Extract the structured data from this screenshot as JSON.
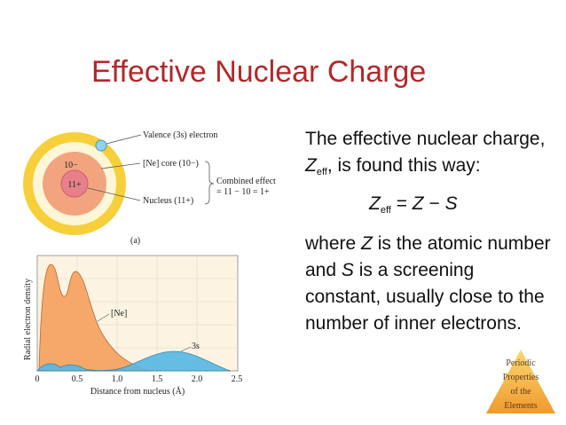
{
  "slide": {
    "title": "Effective Nuclear Charge",
    "paragraph1_a": "The effective nuclear charge, ",
    "paragraph1_z": "Z",
    "paragraph1_sub": "eff",
    "paragraph1_b": ", is found this way:",
    "equation_z": "Z",
    "equation_sub": "eff",
    "equation_rest": " = ",
    "equation_z2": "Z",
    "equation_minus": " − ",
    "equation_s": "S",
    "paragraph2_a": "where ",
    "paragraph2_z": "Z",
    "paragraph2_b": " is the atomic number and ",
    "paragraph2_s": "S",
    "paragraph2_c": " is a screening constant, usually close to the number of inner electrons."
  },
  "figure_a": {
    "core_label": "10−",
    "nucleus_label": "11+",
    "label_valence": "Valence (3s) electron",
    "label_core": "[Ne] core (10−)",
    "label_nucleus": "Nucleus (11+)",
    "label_combined_1": "Combined effect",
    "label_combined_2": "= 11 − 10 = 1+",
    "caption": "(a)"
  },
  "figure_b": {
    "ylabel": "Radial electron density",
    "xlabel": "Distance from nucleus (Å)",
    "ne_label": "[Ne]",
    "s_label": "3s",
    "xticks": [
      "0",
      "0.5",
      "1.0",
      "1.5",
      "2.0",
      "2.5"
    ]
  },
  "badge": {
    "line1": "Periodic",
    "line2": "Properties",
    "line3": "of the",
    "line4": "Elements"
  },
  "colors": {
    "title": "#b3272b",
    "outer_shell": "#f7cf3a",
    "core": "#f2a47e",
    "nucleus": "#e8808a",
    "valence_dot": "#8fd3ef",
    "ne_fill": "#f5a86a",
    "s_fill": "#56b8e4",
    "badge": "#f4b942"
  }
}
